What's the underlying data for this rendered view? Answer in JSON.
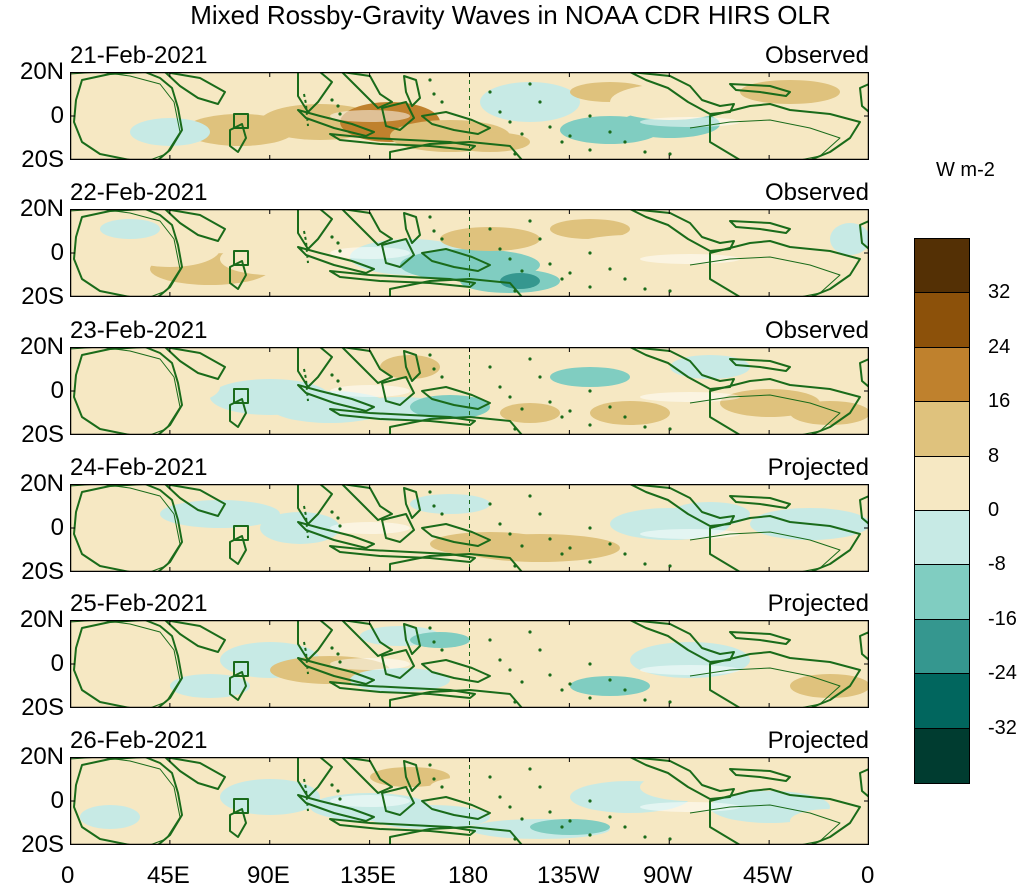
{
  "title": "Mixed Rossby-Gravity Waves in NOAA CDR HIRS OLR",
  "units_label": "W m-2",
  "panels": [
    {
      "date": "21-Feb-2021",
      "status": "Observed"
    },
    {
      "date": "22-Feb-2021",
      "status": "Observed"
    },
    {
      "date": "23-Feb-2021",
      "status": "Observed"
    },
    {
      "date": "24-Feb-2021",
      "status": "Projected"
    },
    {
      "date": "25-Feb-2021",
      "status": "Projected"
    },
    {
      "date": "26-Feb-2021",
      "status": "Projected"
    }
  ],
  "lat_labels": [
    "20N",
    "0",
    "20S"
  ],
  "lon_labels": [
    "0",
    "45E",
    "90E",
    "135E",
    "180",
    "135W",
    "90W",
    "45W",
    "0"
  ],
  "colorbar": {
    "labels": [
      "32",
      "24",
      "16",
      "8",
      "0",
      "-8",
      "-16",
      "-24",
      "-32"
    ],
    "colors": [
      "#543005",
      "#8c510a",
      "#bf812d",
      "#dfc27d",
      "#f6e8c3",
      "#c7eae5",
      "#80cdc1",
      "#35978f",
      "#01665e",
      "#003c30"
    ]
  },
  "colors": {
    "coast": "#1a6b1a",
    "zero": "#ffffff"
  }
}
